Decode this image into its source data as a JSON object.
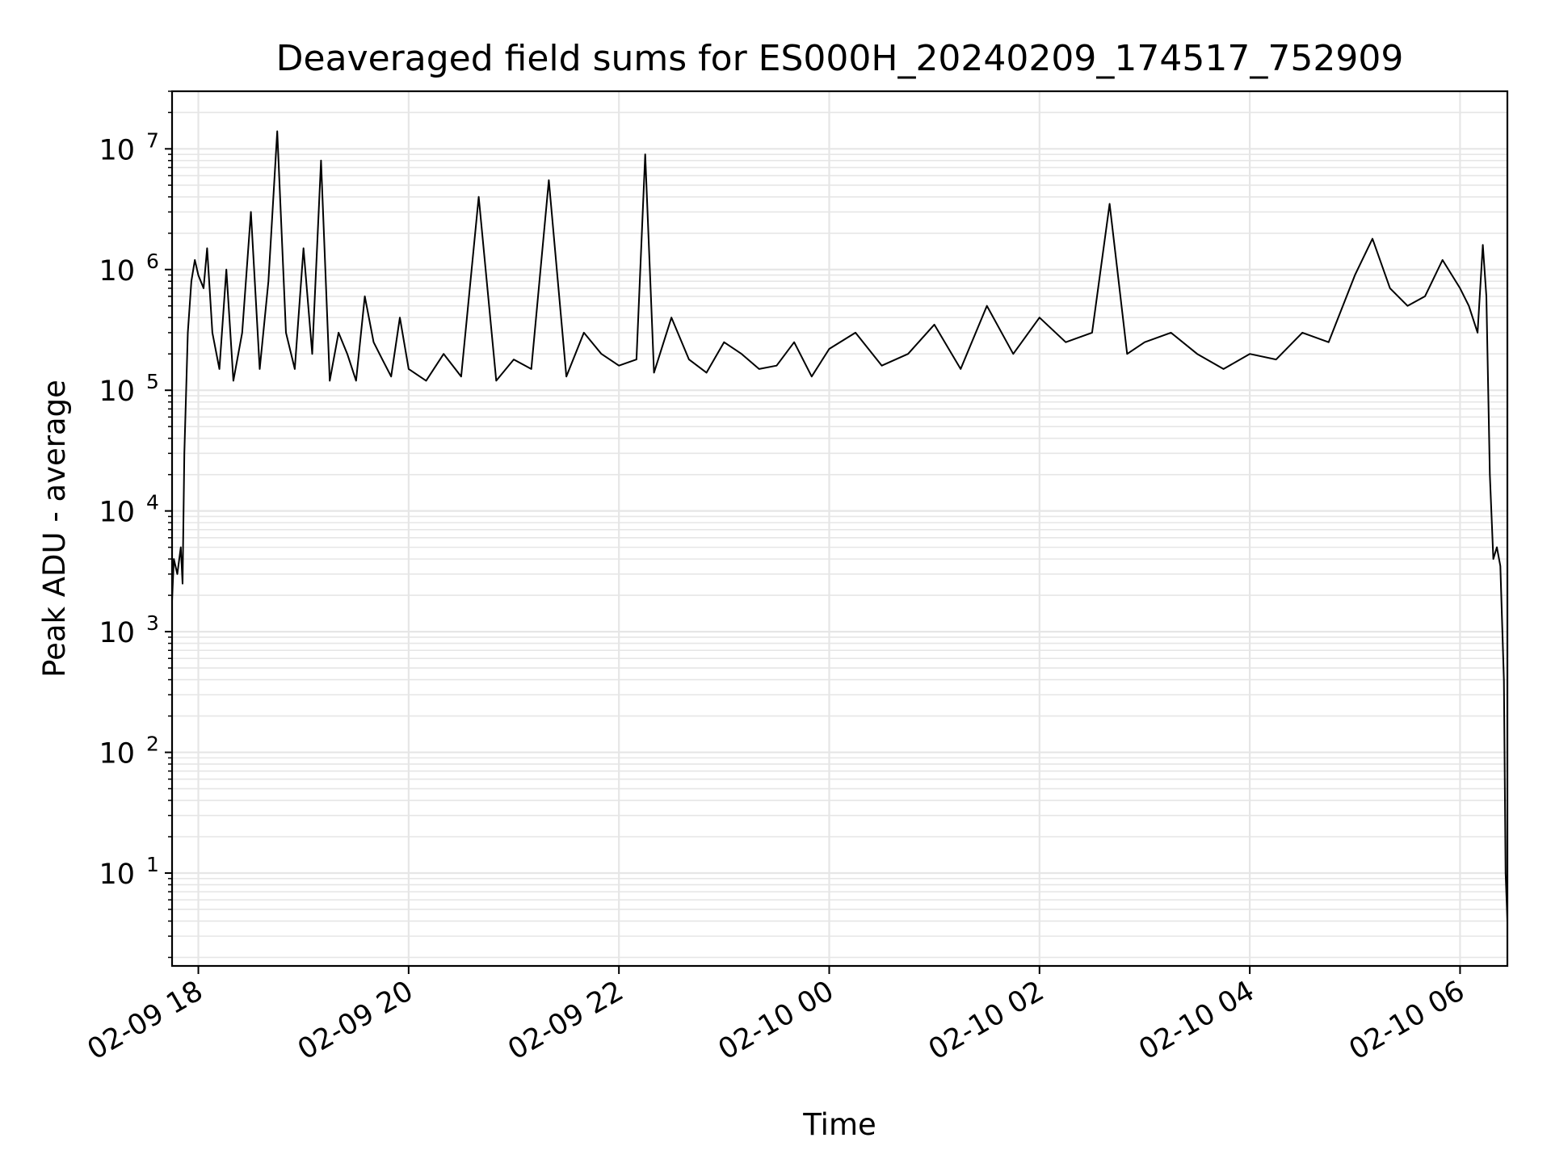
{
  "chart_data": {
    "type": "line",
    "title": "Deaveraged field sums for ES000H_20240209_174517_752909",
    "xlabel": "Time",
    "ylabel": "Peak ADU - average",
    "y_scale": "log",
    "ylim": [
      1.7,
      30000000
    ],
    "xlim": [
      "2024-02-09 17:45",
      "2024-02-10 06:27"
    ],
    "grid": true,
    "x_tick_labels": [
      "02-09 18",
      "02-09 20",
      "02-09 22",
      "02-10 00",
      "02-10 02",
      "02-10 04",
      "02-10 06"
    ],
    "x_ticks": [
      "2024-02-09 18:00",
      "2024-02-09 20:00",
      "2024-02-09 22:00",
      "2024-02-10 00:00",
      "2024-02-10 02:00",
      "2024-02-10 04:00",
      "2024-02-10 06:00"
    ],
    "y_tick_labels": [
      {
        "base": "10",
        "exp": "1"
      },
      {
        "base": "10",
        "exp": "2"
      },
      {
        "base": "10",
        "exp": "3"
      },
      {
        "base": "10",
        "exp": "4"
      },
      {
        "base": "10",
        "exp": "5"
      },
      {
        "base": "10",
        "exp": "6"
      },
      {
        "base": "10",
        "exp": "7"
      }
    ],
    "y_ticks": [
      10,
      100,
      1000,
      10000,
      100000,
      1000000,
      10000000
    ],
    "series": [
      {
        "color": "#000000",
        "x": [
          "2024-02-09 17:45",
          "2024-02-09 17:46",
          "2024-02-09 17:48",
          "2024-02-09 17:50",
          "2024-02-09 17:51",
          "2024-02-09 17:52",
          "2024-02-09 17:54",
          "2024-02-09 17:56",
          "2024-02-09 17:58",
          "2024-02-09 18:00",
          "2024-02-09 18:03",
          "2024-02-09 18:05",
          "2024-02-09 18:08",
          "2024-02-09 18:12",
          "2024-02-09 18:16",
          "2024-02-09 18:20",
          "2024-02-09 18:25",
          "2024-02-09 18:30",
          "2024-02-09 18:35",
          "2024-02-09 18:40",
          "2024-02-09 18:45",
          "2024-02-09 18:50",
          "2024-02-09 18:55",
          "2024-02-09 19:00",
          "2024-02-09 19:05",
          "2024-02-09 19:10",
          "2024-02-09 19:15",
          "2024-02-09 19:20",
          "2024-02-09 19:25",
          "2024-02-09 19:30",
          "2024-02-09 19:35",
          "2024-02-09 19:40",
          "2024-02-09 19:45",
          "2024-02-09 19:50",
          "2024-02-09 19:55",
          "2024-02-09 20:00",
          "2024-02-09 20:10",
          "2024-02-09 20:20",
          "2024-02-09 20:30",
          "2024-02-09 20:40",
          "2024-02-09 20:50",
          "2024-02-09 21:00",
          "2024-02-09 21:10",
          "2024-02-09 21:20",
          "2024-02-09 21:30",
          "2024-02-09 21:40",
          "2024-02-09 21:50",
          "2024-02-09 22:00",
          "2024-02-09 22:10",
          "2024-02-09 22:15",
          "2024-02-09 22:20",
          "2024-02-09 22:30",
          "2024-02-09 22:40",
          "2024-02-09 22:50",
          "2024-02-09 23:00",
          "2024-02-09 23:10",
          "2024-02-09 23:20",
          "2024-02-09 23:30",
          "2024-02-09 23:40",
          "2024-02-09 23:50",
          "2024-02-10 00:00",
          "2024-02-10 00:15",
          "2024-02-10 00:30",
          "2024-02-10 00:45",
          "2024-02-10 01:00",
          "2024-02-10 01:15",
          "2024-02-10 01:30",
          "2024-02-10 01:45",
          "2024-02-10 02:00",
          "2024-02-10 02:15",
          "2024-02-10 02:30",
          "2024-02-10 02:40",
          "2024-02-10 02:50",
          "2024-02-10 03:00",
          "2024-02-10 03:15",
          "2024-02-10 03:30",
          "2024-02-10 03:45",
          "2024-02-10 04:00",
          "2024-02-10 04:15",
          "2024-02-10 04:30",
          "2024-02-10 04:45",
          "2024-02-10 05:00",
          "2024-02-10 05:10",
          "2024-02-10 05:20",
          "2024-02-10 05:30",
          "2024-02-10 05:40",
          "2024-02-10 05:50",
          "2024-02-10 06:00",
          "2024-02-10 06:05",
          "2024-02-10 06:10",
          "2024-02-10 06:13",
          "2024-02-10 06:15",
          "2024-02-10 06:17",
          "2024-02-10 06:19",
          "2024-02-10 06:21",
          "2024-02-10 06:23",
          "2024-02-10 06:25",
          "2024-02-10 06:26",
          "2024-02-10 06:27"
        ],
        "y": [
          1800,
          4000,
          3000,
          5000,
          2500,
          30000,
          300000,
          800000,
          1200000,
          900000,
          700000,
          1500000,
          300000,
          150000,
          1000000,
          120000,
          300000,
          3000000,
          150000,
          800000,
          14000000,
          300000,
          150000,
          1500000,
          200000,
          8000000,
          120000,
          300000,
          200000,
          120000,
          600000,
          250000,
          180000,
          130000,
          400000,
          150000,
          120000,
          200000,
          130000,
          4000000,
          120000,
          180000,
          150000,
          5500000,
          130000,
          300000,
          200000,
          160000,
          180000,
          9000000,
          140000,
          400000,
          180000,
          140000,
          250000,
          200000,
          150000,
          160000,
          250000,
          130000,
          220000,
          300000,
          160000,
          200000,
          350000,
          150000,
          500000,
          200000,
          400000,
          250000,
          300000,
          3500000,
          200000,
          250000,
          300000,
          200000,
          150000,
          200000,
          180000,
          300000,
          250000,
          900000,
          1800000,
          700000,
          500000,
          600000,
          1200000,
          700000,
          500000,
          300000,
          1600000,
          600000,
          20000,
          4000,
          5000,
          3500,
          400,
          10,
          4
        ]
      }
    ]
  }
}
